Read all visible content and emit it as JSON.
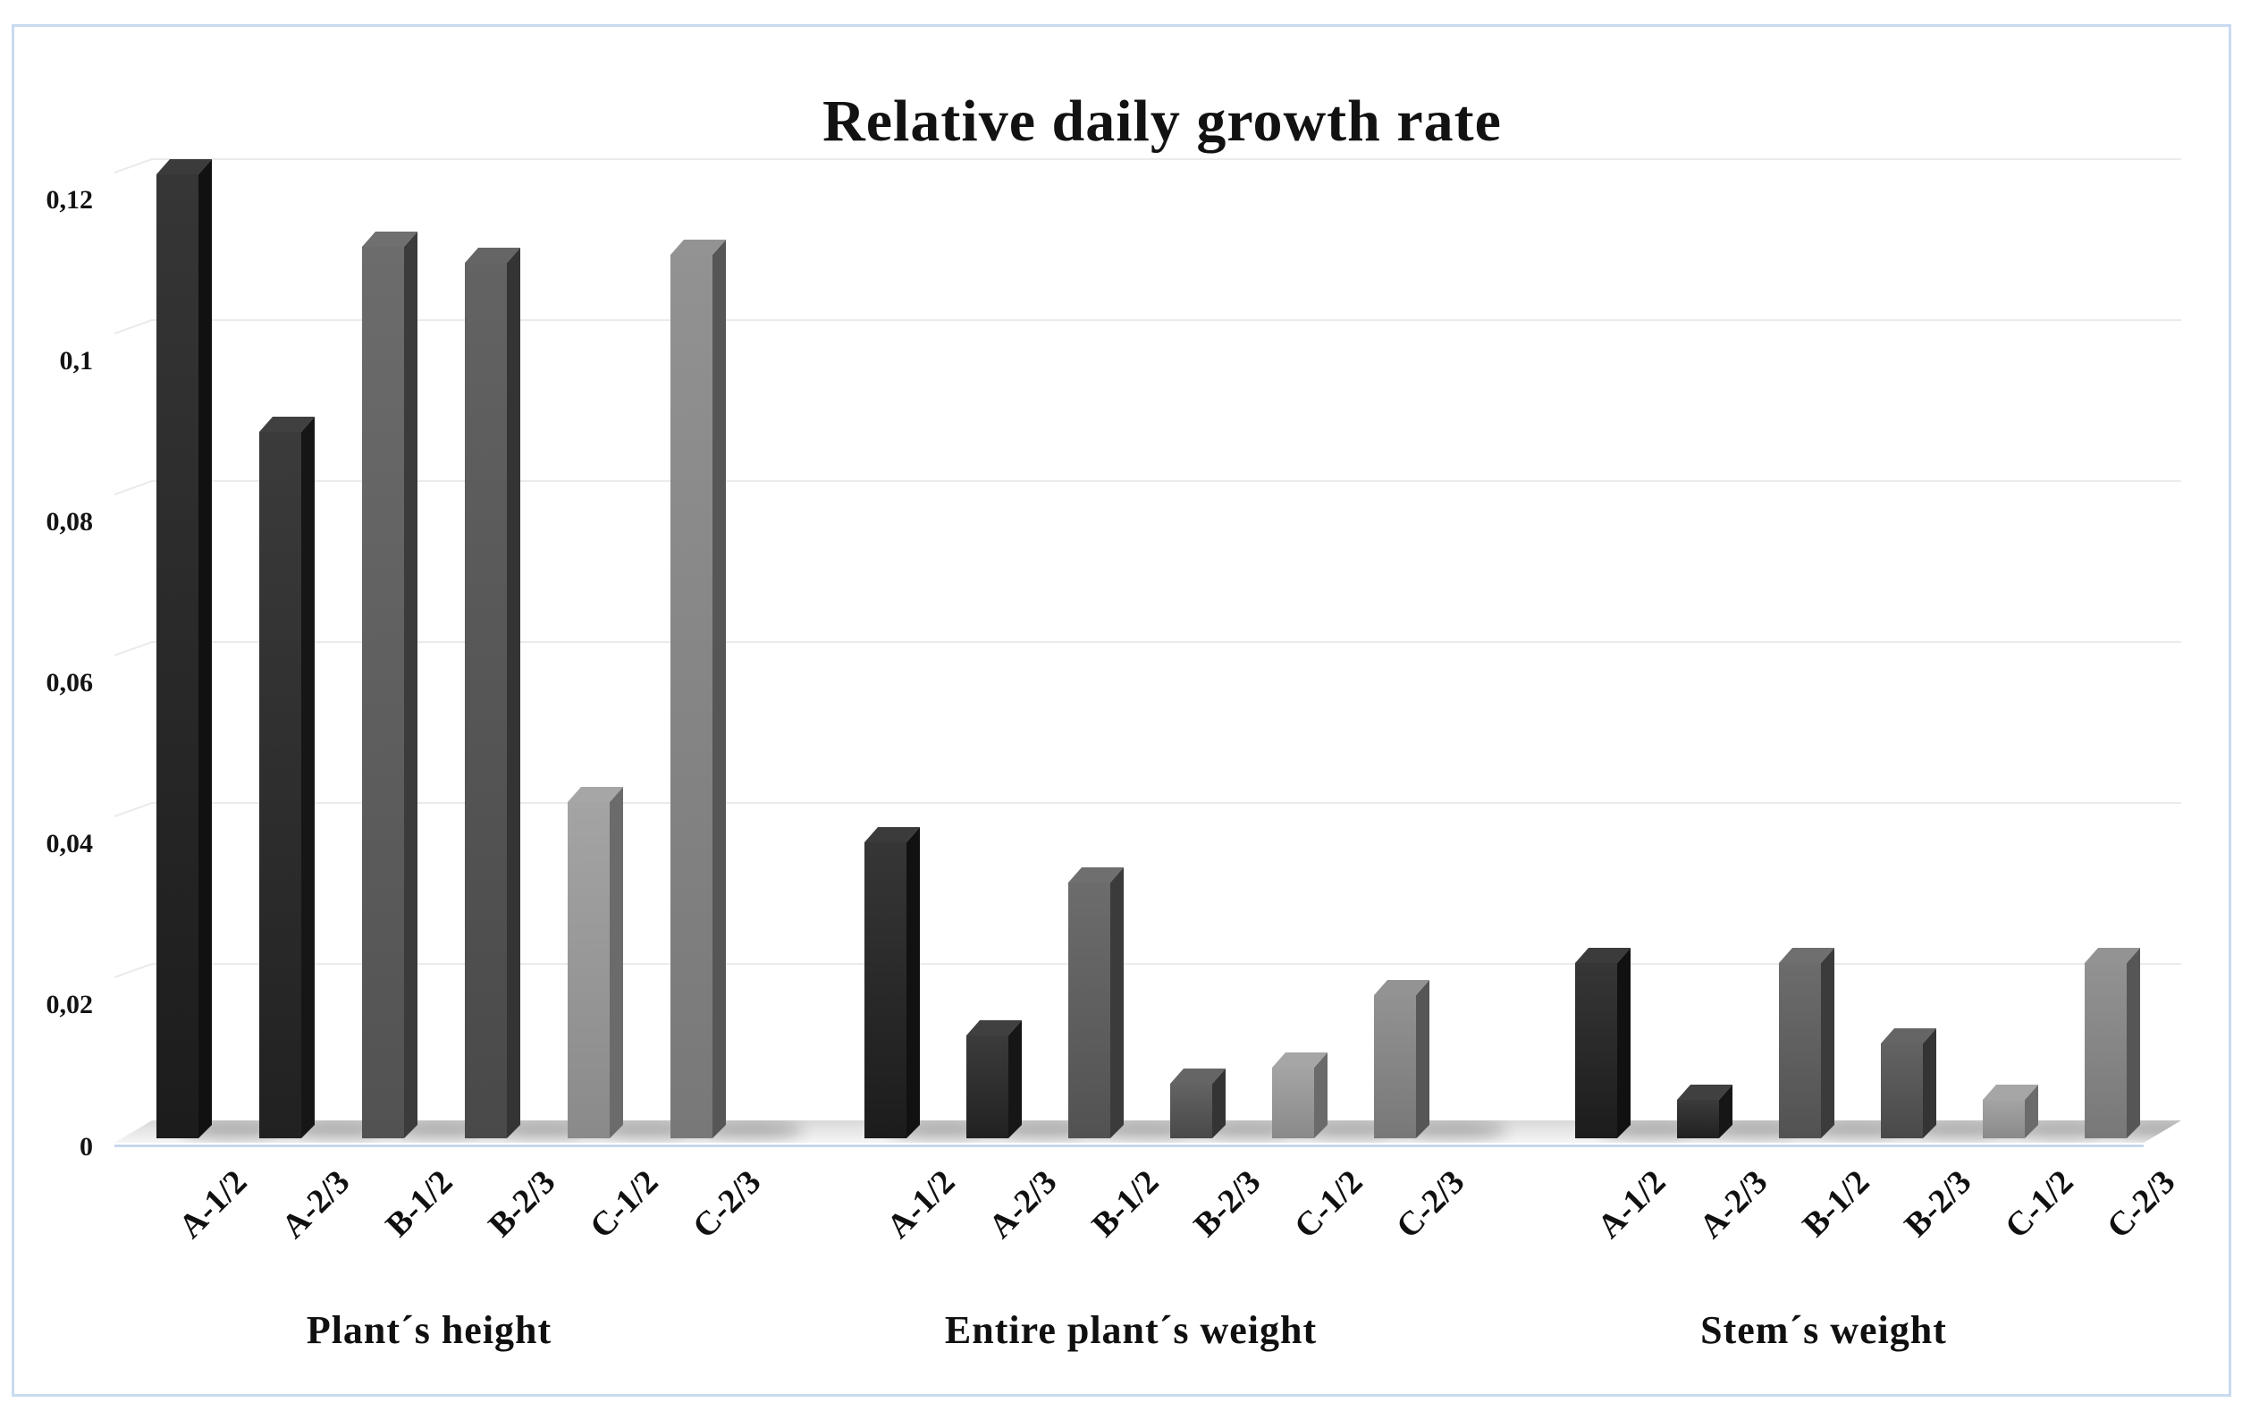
{
  "chart_data": {
    "type": "bar",
    "style": "3d-column",
    "title": "Relative daily growth rate",
    "xlabel": "",
    "ylabel": "",
    "ylim": [
      0,
      0.12
    ],
    "y_tick_step": 0.02,
    "y_tick_labels": [
      "0",
      "0,02",
      "0,04",
      "0,06",
      "0,08",
      "0,1",
      "0,12"
    ],
    "decimal_separator": ",",
    "grid": true,
    "legend": false,
    "categories": [
      "A-1/2",
      "A-2/3",
      "B-1/2",
      "B-2/3",
      "C-1/2",
      "C-2/3"
    ],
    "groups": [
      {
        "label": "Plant´s height",
        "values": [
          0.12,
          0.088,
          0.111,
          0.109,
          0.042,
          0.11
        ]
      },
      {
        "label": "Entire plant´s weight",
        "values": [
          0.037,
          0.013,
          0.032,
          0.007,
          0.009,
          0.018
        ]
      },
      {
        "label": "Stem´s weight",
        "values": [
          0.022,
          0.005,
          0.022,
          0.012,
          0.005,
          0.022
        ]
      }
    ],
    "colors": {
      "bar_front": [
        "#262626",
        "#2b2b2b",
        "#5c5c5c",
        "#535353",
        "#949494",
        "#828282"
      ],
      "bar_side": [
        "#111111",
        "#161616",
        "#3b3b3b",
        "#343434",
        "#6b6b6b",
        "#565656"
      ],
      "bar_top": [
        "#3b3b3b",
        "#404040",
        "#6f6f6f",
        "#656565",
        "#a6a6a6",
        "#939393"
      ],
      "gridline": "#ebebeb",
      "axis_line": "#bdd1ec",
      "frame_border": "#c9daf0",
      "floor_dark": "#d9d9d9",
      "floor_light": "#f5f5f5",
      "background": "#ffffff",
      "text": "#141414"
    }
  }
}
